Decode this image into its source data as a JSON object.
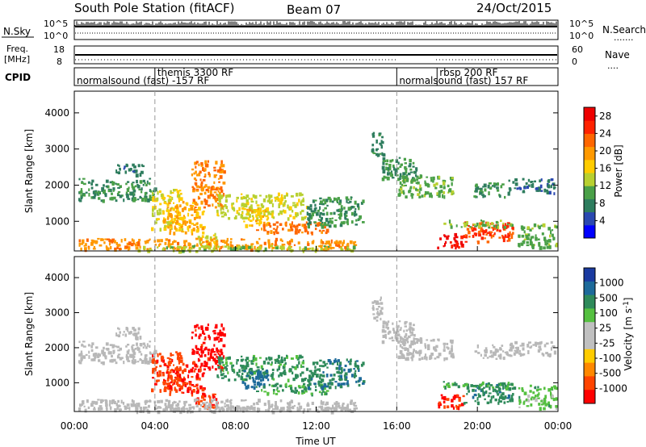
{
  "header": {
    "station": "South Pole Station (fitACF)",
    "beam": "Beam 07",
    "date": "24/Oct/2015"
  },
  "nsky_panel": {
    "left_label": "N.Sky",
    "left_ticks": [
      "10^5",
      "10^0"
    ],
    "right_ticks": [
      "10^5",
      "10^0"
    ],
    "right_label": "N.Search",
    "right_legend": "......."
  },
  "freq_panel": {
    "left_label_1": "Freq.",
    "left_label_2": "[MHz]",
    "left_ticks": [
      "18",
      "8"
    ],
    "right_ticks": [
      "60",
      "0"
    ],
    "right_label": "Nave",
    "right_legend": "...."
  },
  "cpid_panel": {
    "label": "CPID",
    "programs": [
      {
        "name": "normalsound (fast) -157 RF",
        "start_hour": 0
      },
      {
        "name": "themis 3300 RF",
        "start_hour": 4
      },
      {
        "name": "normalsound (fast) 157 RF",
        "start_hour": 16
      },
      {
        "name": "rbsp 200 RF",
        "start_hour": 18
      }
    ]
  },
  "colors": {
    "power_scale": [
      "#0000ff",
      "#2a48b0",
      "#2e7d5e",
      "#4aa048",
      "#b8d030",
      "#ffcc00",
      "#ff9900",
      "#ff6600",
      "#ff2200",
      "#ee0000"
    ],
    "velocity_scale": [
      "#1a3aa0",
      "#1d6a9a",
      "#2e8a5a",
      "#55c040",
      "#c0c0c0",
      "#c0c0c0",
      "#ffcc00",
      "#ff8800",
      "#ff4400",
      "#ff0000"
    ],
    "ground_scatter": "#b8b8b8"
  },
  "chart_data": [
    {
      "type": "heatmap",
      "panel": "power",
      "title": "",
      "xlabel": "",
      "ylabel": "Slant Range [km]",
      "xlim": [
        0,
        24
      ],
      "ylim": [
        180,
        4600
      ],
      "yticks": [
        "1000",
        "2000",
        "3000",
        "4000"
      ],
      "colorbar_label": "Power [dB]",
      "colorbar_ticks": [
        "4",
        "8",
        "12",
        "16",
        "20",
        "24",
        "28"
      ],
      "colorbar_range": [
        0,
        30
      ],
      "regions": [
        {
          "t0": 0.2,
          "t1": 4.0,
          "r0": 1600,
          "r1": 2200,
          "v": 9
        },
        {
          "t0": 2.0,
          "t1": 3.4,
          "r0": 2300,
          "r1": 2600,
          "v": 7
        },
        {
          "t0": 3.8,
          "t1": 5.3,
          "r0": 800,
          "r1": 1900,
          "v": 15
        },
        {
          "t0": 4.4,
          "t1": 6.4,
          "r0": 700,
          "r1": 1600,
          "v": 18
        },
        {
          "t0": 5.8,
          "t1": 7.4,
          "r0": 1400,
          "r1": 2700,
          "v": 21
        },
        {
          "t0": 7.0,
          "t1": 11.5,
          "r0": 1100,
          "r1": 1800,
          "v": 14
        },
        {
          "t0": 8.3,
          "t1": 9.6,
          "r0": 900,
          "r1": 1400,
          "v": 17
        },
        {
          "t0": 9.0,
          "t1": 12.5,
          "r0": 700,
          "r1": 1000,
          "v": 22
        },
        {
          "t0": 11.5,
          "t1": 14.3,
          "r0": 900,
          "r1": 1700,
          "v": 9
        },
        {
          "t0": 6.0,
          "t1": 7.2,
          "r0": 300,
          "r1": 700,
          "v": 14
        },
        {
          "t0": 14.7,
          "t1": 15.3,
          "r0": 2800,
          "r1": 3500,
          "v": 8
        },
        {
          "t0": 15.2,
          "t1": 17.0,
          "r0": 2200,
          "r1": 2800,
          "v": 9
        },
        {
          "t0": 16.0,
          "t1": 18.8,
          "r0": 1700,
          "r1": 2300,
          "v": 11
        },
        {
          "t0": 18.0,
          "t1": 19.3,
          "r0": 300,
          "r1": 700,
          "v": 28
        },
        {
          "t0": 19.3,
          "t1": 21.8,
          "r0": 450,
          "r1": 1000,
          "v": 24
        },
        {
          "t0": 18.2,
          "t1": 21.8,
          "r0": 850,
          "r1": 1050,
          "v": 12
        },
        {
          "t0": 19.8,
          "t1": 21.5,
          "r0": 1700,
          "r1": 2100,
          "v": 9
        },
        {
          "t0": 21.5,
          "t1": 23.8,
          "r0": 1800,
          "r1": 2200,
          "v": 7
        },
        {
          "t0": 22.0,
          "t1": 23.9,
          "r0": 300,
          "r1": 950,
          "v": 11
        },
        {
          "t0": 0.2,
          "t1": 14.0,
          "r0": 250,
          "r1": 550,
          "v": 20
        },
        {
          "t0": 3.0,
          "t1": 14.0,
          "r0": 200,
          "r1": 350,
          "v": 13
        }
      ]
    },
    {
      "type": "heatmap",
      "panel": "velocity",
      "title": "",
      "xlabel": "Time UT",
      "ylabel": "Slant Range [km]",
      "xlim": [
        0,
        24
      ],
      "ylim": [
        180,
        4600
      ],
      "xticks": [
        "00:00",
        "04:00",
        "08:00",
        "12:00",
        "16:00",
        "20:00",
        "00:00"
      ],
      "yticks": [
        "1000",
        "2000",
        "3000",
        "4000"
      ],
      "colorbar_label": "Velocity [m s^-1]",
      "colorbar_ticks": [
        "1000",
        "500",
        "100",
        "25",
        "-25",
        "-100",
        "-500",
        "-1000"
      ],
      "colorbar_range": [
        -1000,
        1000
      ],
      "regions": [
        {
          "t0": 0.2,
          "t1": 4.0,
          "r0": 1600,
          "r1": 2200,
          "v": 0,
          "gs": true
        },
        {
          "t0": 2.0,
          "t1": 3.4,
          "r0": 2300,
          "r1": 2600,
          "v": 0,
          "gs": true
        },
        {
          "t0": 3.8,
          "t1": 5.3,
          "r0": 800,
          "r1": 1900,
          "v": -420
        },
        {
          "t0": 4.4,
          "t1": 6.4,
          "r0": 700,
          "r1": 1600,
          "v": -520
        },
        {
          "t0": 5.8,
          "t1": 7.4,
          "r0": 1400,
          "r1": 2700,
          "v": -600
        },
        {
          "t0": 7.0,
          "t1": 11.5,
          "r0": 1100,
          "r1": 1800,
          "v": 380
        },
        {
          "t0": 8.3,
          "t1": 9.6,
          "r0": 900,
          "r1": 1400,
          "v": 700
        },
        {
          "t0": 9.0,
          "t1": 12.5,
          "r0": 700,
          "r1": 1000,
          "v": 300
        },
        {
          "t0": 11.5,
          "t1": 14.3,
          "r0": 900,
          "r1": 1700,
          "v": 450
        },
        {
          "t0": 6.0,
          "t1": 7.2,
          "r0": 300,
          "r1": 700,
          "v": -450
        },
        {
          "t0": 14.7,
          "t1": 15.3,
          "r0": 2800,
          "r1": 3500,
          "v": 0,
          "gs": true
        },
        {
          "t0": 15.2,
          "t1": 17.0,
          "r0": 2200,
          "r1": 2800,
          "v": 0,
          "gs": true
        },
        {
          "t0": 16.0,
          "t1": 18.8,
          "r0": 1700,
          "r1": 2300,
          "v": 0,
          "gs": true
        },
        {
          "t0": 18.0,
          "t1": 19.3,
          "r0": 300,
          "r1": 700,
          "v": -520
        },
        {
          "t0": 19.3,
          "t1": 21.8,
          "r0": 450,
          "r1": 1000,
          "v": 430
        },
        {
          "t0": 18.2,
          "t1": 21.8,
          "r0": 850,
          "r1": 1050,
          "v": 300
        },
        {
          "t0": 19.8,
          "t1": 21.5,
          "r0": 1700,
          "r1": 2100,
          "v": 0,
          "gs": true
        },
        {
          "t0": 21.5,
          "t1": 23.8,
          "r0": 1800,
          "r1": 2200,
          "v": 0,
          "gs": true
        },
        {
          "t0": 22.0,
          "t1": 23.9,
          "r0": 300,
          "r1": 950,
          "v": 200
        },
        {
          "t0": 0.2,
          "t1": 14.0,
          "r0": 250,
          "r1": 550,
          "v": 0,
          "gs": true
        },
        {
          "t0": 3.0,
          "t1": 14.0,
          "r0": 200,
          "r1": 350,
          "v": 0,
          "gs": true
        }
      ]
    }
  ]
}
